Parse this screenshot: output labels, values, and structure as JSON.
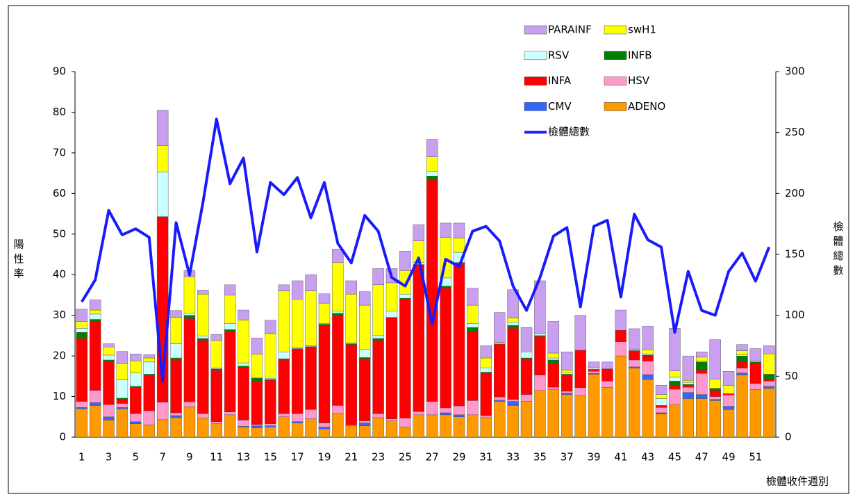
{
  "chart_data": {
    "type": "bar",
    "stacked": true,
    "y_label": "陽性率",
    "y2_label": "檢體總數",
    "x_label": "檢體收件週別",
    "categories": [
      "1",
      null,
      "3",
      null,
      "5",
      null,
      "7",
      null,
      "9",
      null,
      "11",
      null,
      "13",
      null,
      "15",
      null,
      "17",
      null,
      "19",
      null,
      "21",
      null,
      "23",
      null,
      "25",
      null,
      "27",
      null,
      "29",
      null,
      "31",
      null,
      "33",
      null,
      "35",
      null,
      "37",
      null,
      "39",
      null,
      "41",
      null,
      "43",
      null,
      "45",
      null,
      "47",
      null,
      "49",
      null,
      "51",
      null
    ],
    "ylim": [
      0,
      90
    ],
    "yticks": [
      0,
      10,
      20,
      30,
      40,
      50,
      60,
      70,
      80,
      90
    ],
    "y2lim": [
      0,
      300
    ],
    "y2ticks": [
      0,
      50,
      100,
      150,
      200,
      250,
      300
    ],
    "series": [
      {
        "name": "PARAINF",
        "color": "#c9a0f0",
        "values": [
          3,
          2.5,
          0.8,
          3,
          1.7,
          0.8,
          8.7,
          1.7,
          1.5,
          1,
          1.5,
          2.5,
          2.5,
          4,
          3.3,
          1.5,
          4.5,
          4,
          2.3,
          3.3,
          3.3,
          3.3,
          4,
          3.5,
          4.8,
          4,
          4.3,
          3.5,
          3.7,
          4.2,
          3,
          7.4,
          7,
          6,
          13,
          7.8,
          4.5,
          8.6,
          1.5,
          1.7,
          5,
          5,
          5.8,
          2.3,
          10.5,
          6,
          1.3,
          9.7,
          3.5,
          1.5,
          3,
          2
        ]
      },
      {
        "name": "swH1",
        "color": "#ffff00",
        "values": [
          1.7,
          1,
          2,
          4,
          3,
          1,
          6.5,
          6.5,
          9,
          10.3,
          6.8,
          7,
          10.5,
          5.7,
          11,
          15,
          12,
          13.5,
          5,
          12,
          12,
          10.9,
          12.5,
          7,
          5.8,
          5.3,
          3.5,
          10,
          3.5,
          4.5,
          2.5,
          0.2,
          1,
          0,
          0,
          1.2,
          0.7,
          0,
          0,
          0,
          0,
          0.2,
          1,
          1,
          1.5,
          0.5,
          1,
          2.3,
          2,
          1,
          0.3,
          5
        ]
      },
      {
        "name": "RSV",
        "color": "#ccffff",
        "values": [
          1,
          1.3,
          1.2,
          4.5,
          3.3,
          3,
          11,
          3.5,
          0.5,
          0.6,
          0.2,
          1.5,
          0.8,
          0.2,
          0.3,
          1.7,
          0.2,
          0.2,
          0.2,
          0.5,
          0.2,
          2,
          0.7,
          1.5,
          1,
          0.5,
          1.2,
          2,
          2.5,
          1,
          1,
          0.2,
          0.8,
          1.5,
          0.5,
          0.5,
          0.3,
          0,
          0.3,
          0,
          0,
          0.2,
          0.3,
          1.7,
          1,
          0.5,
          0.2,
          0,
          0,
          0.3,
          0,
          0
        ]
      },
      {
        "name": "INFB",
        "color": "#008000",
        "values": [
          1.5,
          0.5,
          0.5,
          0.3,
          0.2,
          0.2,
          0,
          0.5,
          0.8,
          0.5,
          0.3,
          0.5,
          0.3,
          0.7,
          0.2,
          0.3,
          0,
          0,
          0.3,
          0.5,
          0.2,
          0.3,
          0.5,
          0,
          0.2,
          0.2,
          1,
          0.5,
          0.3,
          1,
          0.2,
          0,
          0.7,
          0.2,
          0.2,
          1,
          0.2,
          0,
          0,
          0,
          0,
          0,
          0.2,
          0,
          1,
          0.2,
          2,
          0.5,
          0,
          1.5,
          0.3,
          1.2
        ]
      },
      {
        "name": "INFA",
        "color": "#ff0000",
        "values": [
          15.5,
          17,
          10.5,
          1,
          6.5,
          8.8,
          45.7,
          13,
          20.5,
          18,
          12.7,
          19.8,
          13,
          10.7,
          10.7,
          13.2,
          16,
          15.5,
          24,
          22.2,
          19.8,
          15.3,
          18,
          25,
          29.3,
          36,
          54.5,
          29.5,
          35,
          17,
          10.5,
          13,
          17.5,
          8.8,
          9.5,
          5.7,
          4,
          9.2,
          0.5,
          3,
          2.8,
          2.3,
          1.3,
          0.5,
          1,
          0.5,
          0.8,
          1.5,
          0.3,
          1.5,
          5,
          0.5
        ]
      },
      {
        "name": "HSV",
        "color": "#ff99cc",
        "values": [
          1.5,
          3,
          3,
          1,
          2,
          3.5,
          4.3,
          0.7,
          1.2,
          1.1,
          0.5,
          0.7,
          1.5,
          0.3,
          0.5,
          0.8,
          2,
          2.3,
          1,
          2,
          0.2,
          0.5,
          1,
          0.5,
          2.2,
          0.8,
          3.3,
          1.2,
          2.2,
          3.5,
          0.5,
          0.8,
          0.5,
          1.7,
          3.8,
          0.5,
          0.5,
          2,
          0.5,
          1.5,
          3.5,
          1.7,
          3.3,
          1.3,
          3.8,
          1.3,
          5.2,
          0.7,
          2.8,
          1.2,
          1.5,
          1.3
        ]
      },
      {
        "name": "CMV",
        "color": "#3366ff",
        "values": [
          0.3,
          0.7,
          0.8,
          0.3,
          0.5,
          0,
          0,
          0.5,
          0,
          0,
          0,
          0,
          0.2,
          0.5,
          0.3,
          0,
          0.3,
          0,
          0.5,
          0,
          0,
          0.7,
          0,
          0,
          0,
          0,
          0,
          0.5,
          0.5,
          0,
          0,
          0.3,
          1,
          0,
          0,
          0,
          0.3,
          0,
          0.2,
          0,
          0,
          0.3,
          1.2,
          0.3,
          0,
          1.5,
          1,
          0.3,
          0.8,
          0.5,
          0,
          0.5
        ]
      },
      {
        "name": "ADENO",
        "color": "#ff9900",
        "values": [
          7,
          7.8,
          4.2,
          7,
          3.3,
          3,
          4.3,
          4.8,
          7.5,
          4.7,
          3.3,
          5.5,
          2.5,
          2.3,
          2.5,
          5,
          3.5,
          4.5,
          2,
          5.8,
          2.8,
          2.8,
          4.8,
          4,
          2.5,
          5.5,
          5.5,
          5.5,
          5,
          5.5,
          4.8,
          8.8,
          7.8,
          8.8,
          11.5,
          11.8,
          10.5,
          10.2,
          15.5,
          12.3,
          20,
          17,
          14.2,
          5.7,
          8,
          9.5,
          9.5,
          9,
          6.8,
          15.3,
          11.7,
          12
        ]
      },
      {
        "name": "檢體總數",
        "type": "line",
        "axis": "y2",
        "color": "#1a1aff",
        "values": [
          111,
          129,
          186,
          166,
          171,
          164,
          46,
          176,
          133,
          193,
          261,
          208,
          229,
          152,
          209,
          199,
          213,
          180,
          209,
          159,
          143,
          182,
          169,
          131,
          124,
          147,
          93,
          146,
          140,
          169,
          173,
          161,
          124,
          104,
          131,
          165,
          172,
          107,
          173,
          178,
          115,
          183,
          162,
          156,
          86,
          136,
          104,
          100,
          136,
          151,
          128,
          156
        ]
      }
    ]
  }
}
